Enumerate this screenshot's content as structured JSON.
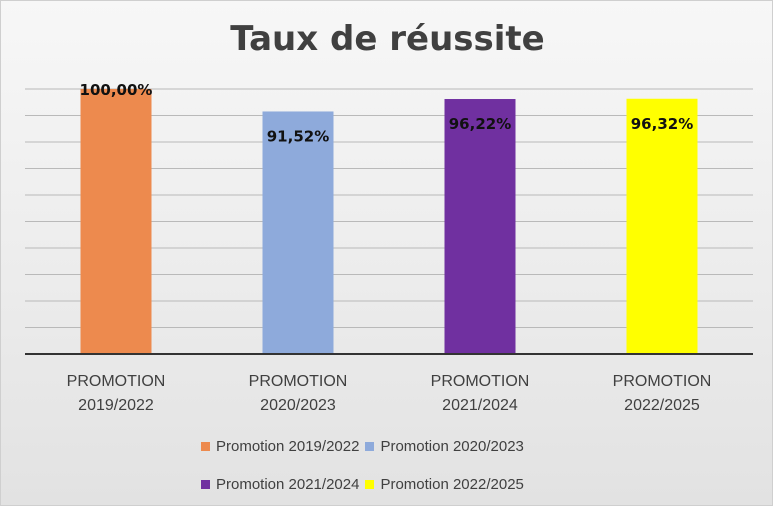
{
  "chart_data": {
    "type": "bar",
    "title": "Taux de réussite",
    "categories": [
      "PROMOTION 2019/2022",
      "PROMOTION 2020/2023",
      "PROMOTION 2021/2024",
      "PROMOTION 2022/2025"
    ],
    "category_lines": [
      [
        "PROMOTION",
        "2019/2022"
      ],
      [
        "PROMOTION",
        "2020/2023"
      ],
      [
        "PROMOTION",
        "2021/2024"
      ],
      [
        "PROMOTION",
        "2022/2025"
      ]
    ],
    "series": [
      {
        "name": "Promotion 2019/2022",
        "values": [
          100.0,
          null,
          null,
          null
        ],
        "label": "100,00%",
        "color": "#ED8A4E"
      },
      {
        "name": "Promotion 2020/2023",
        "values": [
          null,
          91.52,
          null,
          null
        ],
        "label": "91,52%",
        "color": "#8EAADB"
      },
      {
        "name": "Promotion 2021/2024",
        "values": [
          null,
          null,
          96.22,
          null
        ],
        "label": "96,22%",
        "color": "#7030A0"
      },
      {
        "name": "Promotion 2022/2025",
        "values": [
          null,
          null,
          null,
          96.32
        ],
        "label": "96,32%",
        "color": "#FFFF00"
      }
    ],
    "values": [
      100.0,
      91.52,
      96.22,
      96.32
    ],
    "ylim": [
      0,
      100
    ],
    "grid": true,
    "legend_position": "bottom"
  }
}
